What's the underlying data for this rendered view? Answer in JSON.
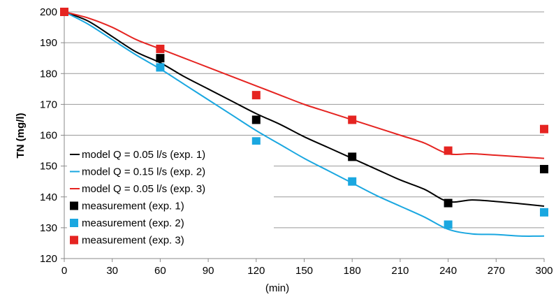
{
  "chart_data": {
    "type": "line",
    "title": "",
    "xlabel": "(min)",
    "ylabel": "TN (mg/l)",
    "xlim": [
      0,
      300
    ],
    "ylim": [
      120,
      200
    ],
    "xticks": [
      "0",
      "30",
      "60",
      "90",
      "120",
      "150",
      "180",
      "210",
      "240",
      "270",
      "300"
    ],
    "yticks": [
      "120",
      "130",
      "140",
      "150",
      "160",
      "170",
      "180",
      "190",
      "200"
    ],
    "grid": "horizontal",
    "legend_position": "lower-left",
    "series": [
      {
        "name": "model Q = 0.05 l/s (exp. 1)",
        "kind": "line",
        "color": "#000000",
        "x": [
          0,
          15,
          30,
          45,
          60,
          75,
          90,
          105,
          120,
          135,
          150,
          165,
          180,
          195,
          210,
          225,
          240,
          255,
          270,
          285,
          300
        ],
        "y": [
          200,
          197,
          192,
          187,
          183.5,
          179,
          175,
          171,
          167,
          163.5,
          159.5,
          156,
          152.5,
          149,
          145.5,
          142.5,
          138.5,
          139,
          138.5,
          137.8,
          137
        ]
      },
      {
        "name": "model  Q = 0.15 l/s (exp. 2)",
        "kind": "line",
        "color": "#1aa7e0",
        "x": [
          0,
          15,
          30,
          45,
          60,
          75,
          90,
          105,
          120,
          135,
          150,
          165,
          180,
          195,
          210,
          225,
          240,
          255,
          270,
          285,
          300
        ],
        "y": [
          200,
          196,
          191,
          186,
          181.5,
          176.5,
          171.5,
          166.5,
          161.5,
          157,
          152.5,
          148.5,
          144.5,
          140.5,
          137,
          133.5,
          129.5,
          128,
          127.8,
          127.3,
          127.3
        ]
      },
      {
        "name": "model Q = 0.05 l/s (exp. 3)",
        "kind": "line",
        "color": "#e52421",
        "x": [
          0,
          15,
          30,
          45,
          60,
          75,
          90,
          105,
          120,
          135,
          150,
          165,
          180,
          195,
          210,
          225,
          240,
          255,
          270,
          285,
          300
        ],
        "y": [
          200,
          198,
          195,
          191,
          188,
          185,
          182,
          179,
          176,
          173,
          170,
          167.5,
          165,
          162.5,
          160,
          157.5,
          154,
          154,
          153.5,
          153,
          152.5
        ]
      },
      {
        "name": "measurement (exp. 1)",
        "kind": "marker",
        "color": "#000000",
        "x": [
          0,
          60,
          120,
          180,
          240,
          300
        ],
        "y": [
          200,
          185,
          165,
          153,
          138,
          149
        ]
      },
      {
        "name": "measurement (exp. 2)",
        "kind": "marker",
        "color": "#1aa7e0",
        "x": [
          0,
          60,
          120,
          180,
          240,
          300
        ],
        "y": [
          200,
          182,
          158,
          145,
          131,
          135
        ]
      },
      {
        "name": "measurement (exp. 3)",
        "kind": "marker",
        "color": "#e52421",
        "x": [
          0,
          60,
          120,
          180,
          240,
          300
        ],
        "y": [
          200,
          188,
          173,
          165,
          155,
          162
        ]
      }
    ]
  }
}
